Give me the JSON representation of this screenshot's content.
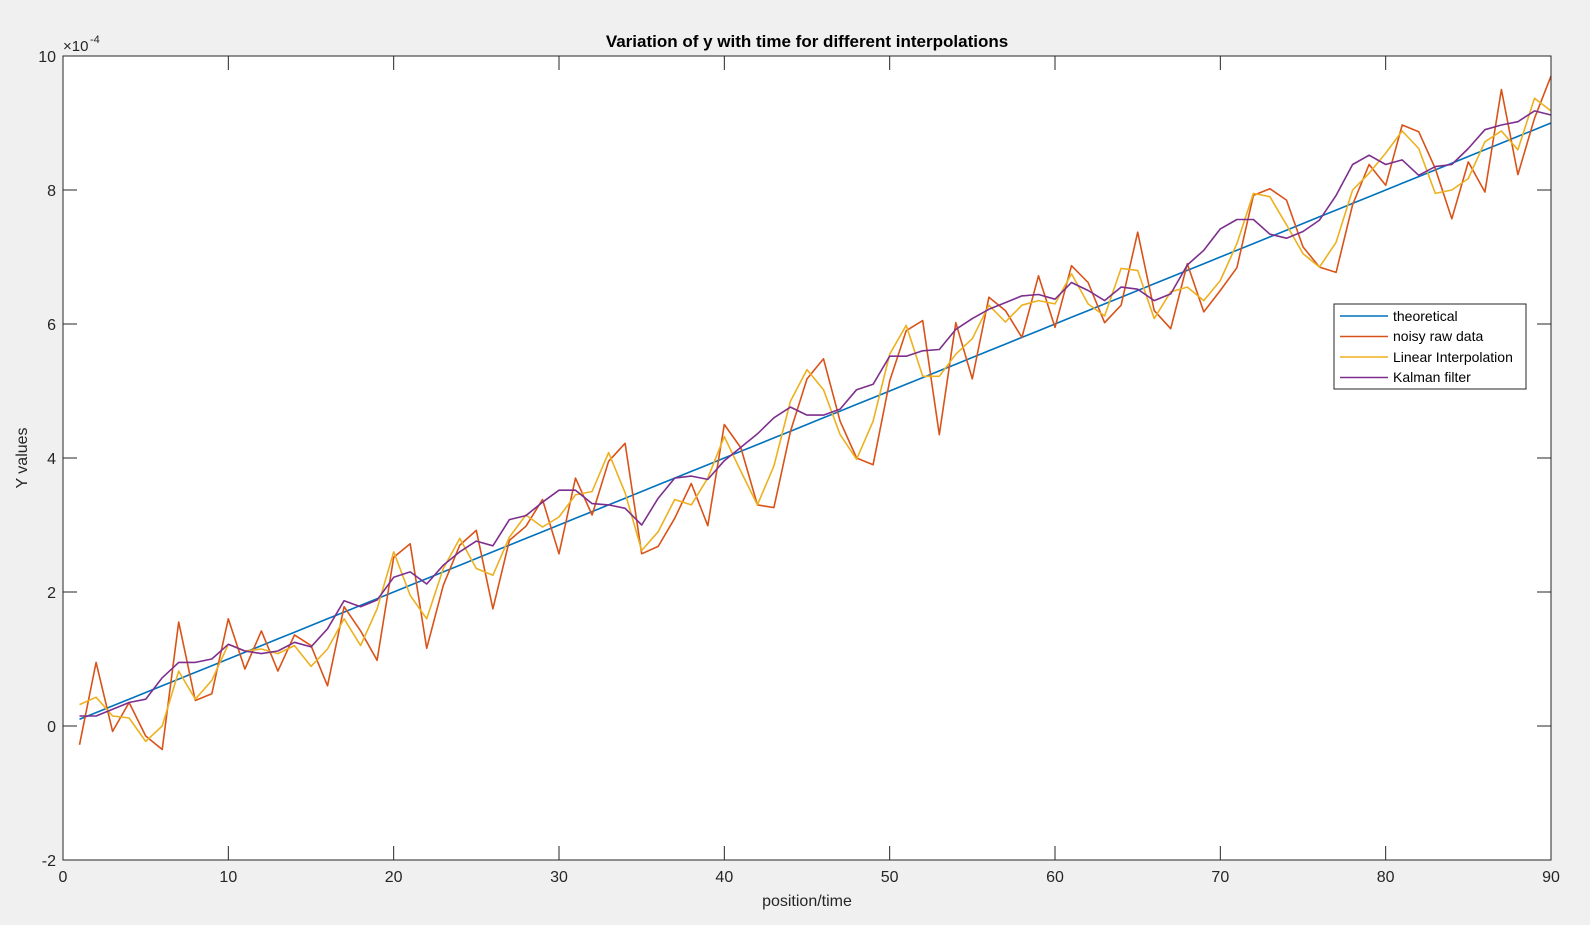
{
  "chart_data": {
    "type": "line",
    "title": "Variation of y with time for different interpolations",
    "xlabel": "position/time",
    "ylabel": "Y values",
    "xlim": [
      0,
      90
    ],
    "ylim": [
      -2,
      10
    ],
    "y_exponent_label": "×10",
    "y_exponent": "-4",
    "xticks": [
      0,
      10,
      20,
      30,
      40,
      50,
      60,
      70,
      80,
      90
    ],
    "yticks": [
      -2,
      0,
      2,
      4,
      6,
      8,
      10
    ],
    "grid": false,
    "legend_position": "right",
    "x": [
      1,
      2,
      3,
      4,
      5,
      6,
      7,
      8,
      9,
      10,
      11,
      12,
      13,
      14,
      15,
      16,
      17,
      18,
      19,
      20,
      21,
      22,
      23,
      24,
      25,
      26,
      27,
      28,
      29,
      30,
      31,
      32,
      33,
      34,
      35,
      36,
      37,
      38,
      39,
      40,
      41,
      42,
      43,
      44,
      45,
      46,
      47,
      48,
      49,
      50,
      51,
      52,
      53,
      54,
      55,
      56,
      57,
      58,
      59,
      60,
      61,
      62,
      63,
      64,
      65,
      66,
      67,
      68,
      69,
      70,
      71,
      72,
      73,
      74,
      75,
      76,
      77,
      78,
      79,
      80,
      81,
      82,
      83,
      84,
      85,
      86,
      87,
      88,
      89,
      90
    ],
    "series": [
      {
        "name": "theoretical",
        "color": "#0072bd",
        "values": [
          0.1,
          0.2,
          0.3,
          0.4,
          0.5,
          0.6,
          0.7,
          0.8,
          0.9,
          1.0,
          1.1,
          1.2,
          1.3,
          1.4,
          1.5,
          1.6,
          1.7,
          1.8,
          1.9,
          2.0,
          2.1,
          2.2,
          2.3,
          2.4,
          2.5,
          2.6,
          2.7,
          2.8,
          2.9,
          3.0,
          3.1,
          3.2,
          3.3,
          3.4,
          3.5,
          3.6,
          3.7,
          3.8,
          3.9,
          4.0,
          4.1,
          4.2,
          4.3,
          4.4,
          4.5,
          4.6,
          4.7,
          4.8,
          4.9,
          5.0,
          5.1,
          5.2,
          5.3,
          5.4,
          5.5,
          5.6,
          5.7,
          5.8,
          5.9,
          6.0,
          6.1,
          6.2,
          6.3,
          6.4,
          6.5,
          6.6,
          6.7,
          6.8,
          6.9,
          7.0,
          7.1,
          7.2,
          7.3,
          7.4,
          7.5,
          7.6,
          7.7,
          7.8,
          7.9,
          8.0,
          8.1,
          8.2,
          8.3,
          8.4,
          8.5,
          8.6,
          8.7,
          8.8,
          8.9,
          9.0
        ]
      },
      {
        "name": "noisy raw data",
        "color": "#d95319",
        "values": [
          -0.28,
          0.95,
          -0.08,
          0.35,
          -0.15,
          -0.35,
          1.55,
          0.38,
          0.48,
          1.6,
          0.85,
          1.42,
          0.82,
          1.36,
          1.2,
          0.6,
          1.78,
          1.42,
          0.98,
          2.52,
          2.72,
          1.16,
          2.1,
          2.7,
          2.92,
          1.75,
          2.77,
          2.98,
          3.38,
          2.57,
          3.7,
          3.15,
          3.95,
          4.22,
          2.57,
          2.68,
          3.1,
          3.62,
          2.99,
          4.5,
          4.15,
          3.3,
          3.26,
          4.4,
          5.18,
          5.48,
          4.55,
          4.0,
          3.9,
          5.15,
          5.9,
          6.05,
          4.35,
          6.02,
          5.18,
          6.4,
          6.2,
          5.8,
          6.72,
          5.95,
          6.87,
          6.62,
          6.02,
          6.28,
          7.37,
          6.2,
          5.93,
          6.9,
          6.18,
          6.5,
          6.84,
          7.92,
          8.02,
          7.85,
          7.15,
          6.85,
          6.77,
          7.78,
          8.38,
          8.07,
          8.97,
          8.87,
          8.32,
          7.57,
          8.42,
          7.97,
          9.5,
          8.23,
          9.07,
          9.7
        ]
      },
      {
        "name": "Linear Interpolation",
        "color": "#edb120",
        "values": [
          0.32,
          0.43,
          0.15,
          0.12,
          -0.23,
          0.0,
          0.82,
          0.4,
          0.68,
          1.22,
          1.12,
          1.15,
          1.08,
          1.2,
          0.89,
          1.15,
          1.6,
          1.2,
          1.75,
          2.6,
          1.95,
          1.6,
          2.35,
          2.8,
          2.35,
          2.25,
          2.82,
          3.15,
          2.97,
          3.12,
          3.45,
          3.5,
          4.08,
          3.48,
          2.62,
          2.9,
          3.38,
          3.3,
          3.7,
          4.32,
          3.8,
          3.3,
          3.88,
          4.85,
          5.32,
          5.02,
          4.35,
          3.98,
          4.55,
          5.55,
          5.98,
          5.22,
          5.22,
          5.55,
          5.78,
          6.28,
          6.03,
          6.28,
          6.35,
          6.3,
          6.75,
          6.3,
          6.12,
          6.83,
          6.8,
          6.08,
          6.48,
          6.55,
          6.35,
          6.65,
          7.2,
          7.95,
          7.9,
          7.48,
          7.05,
          6.85,
          7.22,
          8.0,
          8.25,
          8.55,
          8.88,
          8.62,
          7.95,
          8.0,
          8.17,
          8.72,
          8.88,
          8.6,
          9.37,
          9.18
        ]
      },
      {
        "name": "Kalman filter",
        "color": "#7e2f8e",
        "values": [
          0.15,
          0.15,
          0.25,
          0.35,
          0.4,
          0.72,
          0.95,
          0.95,
          1.0,
          1.22,
          1.12,
          1.08,
          1.12,
          1.25,
          1.18,
          1.45,
          1.87,
          1.78,
          1.88,
          2.22,
          2.3,
          2.12,
          2.4,
          2.6,
          2.76,
          2.69,
          3.08,
          3.14,
          3.34,
          3.52,
          3.52,
          3.32,
          3.3,
          3.25,
          3.0,
          3.4,
          3.7,
          3.73,
          3.68,
          3.96,
          4.16,
          4.36,
          4.6,
          4.76,
          4.64,
          4.64,
          4.73,
          5.02,
          5.1,
          5.52,
          5.52,
          5.6,
          5.62,
          5.92,
          6.08,
          6.22,
          6.32,
          6.42,
          6.44,
          6.37,
          6.62,
          6.5,
          6.35,
          6.55,
          6.52,
          6.35,
          6.45,
          6.88,
          7.1,
          7.42,
          7.56,
          7.56,
          7.34,
          7.28,
          7.38,
          7.55,
          7.92,
          8.38,
          8.52,
          8.38,
          8.45,
          8.22,
          8.35,
          8.38,
          8.62,
          8.9,
          8.97,
          9.02,
          9.18,
          9.12
        ]
      }
    ]
  }
}
